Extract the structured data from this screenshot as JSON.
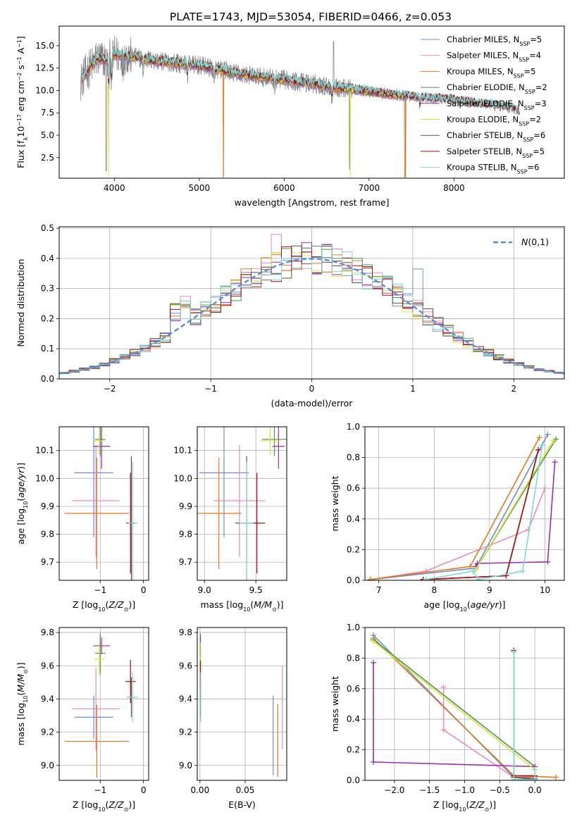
{
  "figure_title": "PLATE=1743, MJD=53054, FIBERID=0466, z=0.053",
  "colors": {
    "Chabrier MILES": "#6a8fd6",
    "Salpeter MILES": "#e98bc1",
    "Kroupa MILES": "#e07a1f",
    "Chabrier ELODIE": "#4a9a48",
    "Salpeter ELODIE": "#9b2bb0",
    "Kroupa ELODIE": "#dde33d",
    "Chabrier STELIB": "#6b4a40",
    "Salpeter STELIB": "#a01010",
    "Kroupa STELIB": "#7fd8d8"
  },
  "chart_data": [
    {
      "id": "spectrum",
      "type": "line",
      "title": "PLATE=1743, MJD=53054, FIBERID=0466, z=0.053",
      "xlabel": "wavelength [Angstrom, rest frame]",
      "ylabel": "Flux [f_λ 10^-17 erg cm^-2 s^-1 A^-1]",
      "xlim": [
        3350,
        9300
      ],
      "ylim": [
        0.2,
        17.2
      ],
      "xticks": [
        4000,
        5000,
        6000,
        7000,
        8000
      ],
      "yticks": [
        2.5,
        5.0,
        7.5,
        10.0,
        12.5,
        15.0
      ],
      "grid": false,
      "legend_position": "top-right",
      "legend": [
        {
          "model": "Chabrier MILES",
          "nssp": "5"
        },
        {
          "model": "Salpeter MILES",
          "nssp": "4"
        },
        {
          "model": "Kroupa MILES",
          "nssp": "5"
        },
        {
          "model": "Chabrier ELODIE",
          "nssp": "2"
        },
        {
          "model": "Salpeter ELODIE",
          "nssp": "3"
        },
        {
          "model": "Kroupa ELODIE",
          "nssp": "2"
        },
        {
          "model": "Chabrier STELIB",
          "nssp": "6"
        },
        {
          "model": "Salpeter STELIB",
          "nssp": "5"
        },
        {
          "model": "Kroupa STELIB",
          "nssp": "6"
        }
      ],
      "continuum": [
        [
          3600,
          11.0
        ],
        [
          3700,
          12.4
        ],
        [
          3800,
          13.6
        ],
        [
          3900,
          13.4
        ],
        [
          4000,
          14.0
        ],
        [
          4200,
          13.8
        ],
        [
          4500,
          13.3
        ],
        [
          5000,
          12.8
        ],
        [
          5500,
          11.8
        ],
        [
          6000,
          11.2
        ],
        [
          6500,
          10.5
        ],
        [
          7000,
          9.9
        ],
        [
          7500,
          9.3
        ],
        [
          8000,
          8.9
        ],
        [
          8400,
          8.4
        ],
        [
          8700,
          8.0
        ],
        [
          8780,
          7.7
        ]
      ]
    },
    {
      "id": "residuals",
      "type": "histogram",
      "xlabel": "(data-model)/error",
      "ylabel": "Normed distribution",
      "xlim": [
        -2.5,
        2.5
      ],
      "ylim": [
        0,
        0.505
      ],
      "xticks": [
        -2,
        -1,
        0,
        1,
        2
      ],
      "yticks": [
        0.0,
        0.1,
        0.2,
        0.3,
        0.4,
        0.5
      ],
      "grid": true,
      "bin_width": 0.1,
      "legend_position": "top-right",
      "reference_label": "N(0,1)"
    },
    {
      "id": "age-vs-Z",
      "type": "errorbar",
      "xlabel": "Z [log10(Z/Z⊙)]",
      "ylabel": "age [log10(age/yr)]",
      "xlim": [
        -1.95,
        0.12
      ],
      "ylim": [
        9.635,
        10.185
      ],
      "xticks": [
        -1,
        0
      ],
      "yticks": [
        9.7,
        9.8,
        9.9,
        10.0,
        10.1
      ],
      "grid": true,
      "points": [
        {
          "model": "Chabrier MILES",
          "x": -1.15,
          "xerr": 0.45,
          "y": 10.02,
          "yerr": 0.23
        },
        {
          "model": "Salpeter MILES",
          "x": -1.1,
          "xerr": 0.55,
          "y": 9.92,
          "yerr": 0.2
        },
        {
          "model": "Kroupa MILES",
          "x": -1.08,
          "xerr": 0.75,
          "y": 9.875,
          "yerr": 0.2
        },
        {
          "model": "Chabrier ELODIE",
          "x": -1.0,
          "xerr": 0.12,
          "y": 10.14,
          "yerr": 0.06
        },
        {
          "model": "Salpeter ELODIE",
          "x": -0.97,
          "xerr": 0.2,
          "y": 10.115,
          "yerr": 0.08
        },
        {
          "model": "Kroupa ELODIE",
          "x": -1.02,
          "xerr": 0.12,
          "y": 10.135,
          "yerr": 0.05
        },
        {
          "model": "Chabrier STELIB",
          "x": -0.28,
          "xerr": 0.1,
          "y": 9.84,
          "yerr": 0.24
        },
        {
          "model": "Salpeter STELIB",
          "x": -0.3,
          "xerr": 0.1,
          "y": 9.84,
          "yerr": 0.18
        },
        {
          "model": "Kroupa STELIB",
          "x": -0.25,
          "xerr": 0.12,
          "y": 9.84,
          "yerr": 0.22
        }
      ]
    },
    {
      "id": "age-vs-mass",
      "type": "errorbar",
      "xlabel": "mass [log10(M/M⊙)]",
      "ylabel": "",
      "xlim": [
        8.93,
        9.8
      ],
      "ylim": [
        9.635,
        10.185
      ],
      "xticks": [
        9.0,
        9.5
      ],
      "yticks": [
        9.7,
        9.8,
        9.9,
        10.0,
        10.1
      ],
      "grid": true,
      "points": [
        {
          "model": "Chabrier MILES",
          "x": 9.19,
          "xerr": 0.24,
          "y": 10.02,
          "yerr": 0.23
        },
        {
          "model": "Salpeter MILES",
          "x": 9.34,
          "xerr": 0.25,
          "y": 9.92,
          "yerr": 0.2
        },
        {
          "model": "Kroupa MILES",
          "x": 9.14,
          "xerr": 0.22,
          "y": 9.875,
          "yerr": 0.2
        },
        {
          "model": "Chabrier ELODIE",
          "x": 9.68,
          "xerr": 0.12,
          "y": 10.14,
          "yerr": 0.06
        },
        {
          "model": "Salpeter ELODIE",
          "x": 9.72,
          "xerr": 0.06,
          "y": 10.115,
          "yerr": 0.08
        },
        {
          "model": "Kroupa ELODIE",
          "x": 9.64,
          "xerr": 0.1,
          "y": 10.135,
          "yerr": 0.05
        },
        {
          "model": "Chabrier STELIB",
          "x": 9.41,
          "xerr": 0.11,
          "y": 9.84,
          "yerr": 0.24
        },
        {
          "model": "Salpeter STELIB",
          "x": 9.51,
          "xerr": 0.08,
          "y": 9.84,
          "yerr": 0.18
        },
        {
          "model": "Kroupa STELIB",
          "x": 9.41,
          "xerr": 0.07,
          "y": 9.84,
          "yerr": 0.22
        }
      ]
    },
    {
      "id": "weight-vs-age",
      "type": "line",
      "xlabel": "age [log10(age/yr)]",
      "ylabel": "mass weight",
      "xlim": [
        6.75,
        10.35
      ],
      "ylim": [
        0,
        1.0
      ],
      "xticks": [
        7,
        8,
        9,
        10
      ],
      "yticks": [
        0.0,
        0.2,
        0.4,
        0.6,
        0.8,
        1.0
      ],
      "grid": true,
      "series": [
        {
          "model": "Chabrier MILES",
          "points": [
            [
              6.85,
              0.005
            ],
            [
              8.75,
              0.08
            ],
            [
              10.05,
              0.95
            ]
          ]
        },
        {
          "model": "Salpeter MILES",
          "points": [
            [
              6.85,
              0.005
            ],
            [
              7.85,
              0.06
            ],
            [
              9.7,
              0.33
            ],
            [
              10.0,
              0.6
            ]
          ]
        },
        {
          "model": "Kroupa MILES",
          "points": [
            [
              6.85,
              0.005
            ],
            [
              8.65,
              0.09
            ],
            [
              9.9,
              0.93
            ]
          ]
        },
        {
          "model": "Chabrier ELODIE",
          "points": [
            [
              8.75,
              0.07
            ],
            [
              10.2,
              0.92
            ]
          ]
        },
        {
          "model": "Salpeter ELODIE",
          "points": [
            [
              8.75,
              0.09
            ],
            [
              8.78,
              0.11
            ],
            [
              10.05,
              0.12
            ],
            [
              10.18,
              0.77
            ]
          ]
        },
        {
          "model": "Kroupa ELODIE",
          "points": [
            [
              8.75,
              0.07
            ],
            [
              10.15,
              0.91
            ]
          ]
        },
        {
          "model": "Chabrier STELIB",
          "points": [
            [
              7.8,
              0.005
            ],
            [
              9.3,
              0.03
            ],
            [
              9.88,
              0.85
            ]
          ]
        },
        {
          "model": "Salpeter STELIB",
          "points": [
            [
              7.8,
              0.005
            ],
            [
              9.3,
              0.03
            ],
            [
              9.88,
              0.85
            ]
          ]
        },
        {
          "model": "Kroupa STELIB",
          "points": [
            [
              7.85,
              0.005
            ],
            [
              8.7,
              0.06
            ],
            [
              8.8,
              0.005
            ],
            [
              9.6,
              0.06
            ],
            [
              9.95,
              0.88
            ]
          ]
        }
      ]
    },
    {
      "id": "mass-vs-Z",
      "type": "errorbar",
      "xlabel": "Z [log10(Z/Z⊙)]",
      "ylabel": "mass [log10(M/M⊙)]",
      "xlim": [
        -1.95,
        0.12
      ],
      "ylim": [
        8.91,
        9.83
      ],
      "xticks": [
        -1,
        0
      ],
      "yticks": [
        9.0,
        9.2,
        9.4,
        9.6,
        9.8
      ],
      "grid": true,
      "points": [
        {
          "model": "Chabrier MILES",
          "x": -1.15,
          "xerr": 0.45,
          "y": 9.29,
          "yerr": 0.13
        },
        {
          "model": "Salpeter MILES",
          "x": -1.1,
          "xerr": 0.55,
          "y": 9.34,
          "yerr": 0.25
        },
        {
          "model": "Kroupa MILES",
          "x": -1.08,
          "xerr": 0.75,
          "y": 9.145,
          "yerr": 0.22
        },
        {
          "model": "Chabrier ELODIE",
          "x": -1.0,
          "xerr": 0.12,
          "y": 9.675,
          "yerr": 0.12
        },
        {
          "model": "Salpeter ELODIE",
          "x": -0.97,
          "xerr": 0.2,
          "y": 9.72,
          "yerr": 0.05
        },
        {
          "model": "Kroupa ELODIE",
          "x": -1.02,
          "xerr": 0.12,
          "y": 9.64,
          "yerr": 0.1
        },
        {
          "model": "Chabrier STELIB",
          "x": -0.28,
          "xerr": 0.1,
          "y": 9.41,
          "yerr": 0.12
        },
        {
          "model": "Salpeter STELIB",
          "x": -0.3,
          "xerr": 0.12,
          "y": 9.505,
          "yerr": 0.13
        },
        {
          "model": "Kroupa STELIB",
          "x": -0.25,
          "xerr": 0.12,
          "y": 9.41,
          "yerr": 0.15
        }
      ]
    },
    {
      "id": "mass-vs-EBV",
      "type": "errorbar",
      "xlabel": "E(B-V)",
      "ylabel": "",
      "xlim": [
        -0.003,
        0.096
      ],
      "ylim": [
        8.91,
        9.83
      ],
      "xticks": [
        0.0,
        0.05
      ],
      "yticks": [
        9.0,
        9.2,
        9.4,
        9.6,
        9.8
      ],
      "grid": true,
      "points": [
        {
          "model": "Chabrier MILES",
          "x": 0.081,
          "xerr": 0,
          "y": 9.18,
          "yerr": 0.24
        },
        {
          "model": "Salpeter MILES",
          "x": 0.091,
          "xerr": 0,
          "y": 9.35,
          "yerr": 0.25
        },
        {
          "model": "Kroupa MILES",
          "x": 0.086,
          "xerr": 0,
          "y": 9.15,
          "yerr": 0.22
        },
        {
          "model": "Chabrier ELODIE",
          "x": 0.0005,
          "xerr": 0,
          "y": 9.675,
          "yerr": 0.12
        },
        {
          "model": "Salpeter ELODIE",
          "x": 0.0005,
          "xerr": 0,
          "y": 9.72,
          "yerr": 0.06
        },
        {
          "model": "Kroupa ELODIE",
          "x": 0.0008,
          "xerr": 0,
          "y": 9.64,
          "yerr": 0.1
        },
        {
          "model": "Chabrier STELIB",
          "x": 0.0005,
          "xerr": 0,
          "y": 9.41,
          "yerr": 0.12
        },
        {
          "model": "Salpeter STELIB",
          "x": 0.0005,
          "xerr": 0,
          "y": 9.55,
          "yerr": 0.08
        },
        {
          "model": "Kroupa STELIB",
          "x": 0.0008,
          "xerr": 0,
          "y": 9.41,
          "yerr": 0.15
        }
      ]
    },
    {
      "id": "weight-vs-Z",
      "type": "line",
      "xlabel": "Z [log10(Z/Z⊙)]",
      "ylabel": "mass weight",
      "xlim": [
        -2.42,
        0.42
      ],
      "ylim": [
        0,
        1.0
      ],
      "xticks": [
        -2.0,
        -1.5,
        -1.0,
        -0.5,
        0.0
      ],
      "yticks": [
        0.0,
        0.2,
        0.4,
        0.6,
        0.8,
        1.0
      ],
      "grid": true,
      "series": [
        {
          "model": "Chabrier MILES",
          "points": [
            [
              -2.3,
              0.95
            ],
            [
              -0.3,
              0.02
            ],
            [
              0.0,
              0.005
            ]
          ]
        },
        {
          "model": "Salpeter MILES",
          "points": [
            [
              -1.3,
              0.61
            ],
            [
              -1.3,
              0.33
            ],
            [
              -0.3,
              0.02
            ],
            [
              0.0,
              0.02
            ]
          ]
        },
        {
          "model": "Kroupa MILES",
          "points": [
            [
              -2.3,
              0.93
            ],
            [
              -0.3,
              0.03
            ],
            [
              0.3,
              0.02
            ]
          ]
        },
        {
          "model": "Chabrier ELODIE",
          "points": [
            [
              -2.3,
              0.92
            ],
            [
              0.0,
              0.09
            ]
          ]
        },
        {
          "model": "Salpeter ELODIE",
          "points": [
            [
              -2.3,
              0.77
            ],
            [
              -2.3,
              0.12
            ],
            [
              0.0,
              0.09
            ]
          ]
        },
        {
          "model": "Kroupa ELODIE",
          "points": [
            [
              -2.3,
              0.91
            ],
            [
              0.0,
              0.07
            ]
          ]
        },
        {
          "model": "Chabrier STELIB",
          "points": [
            [
              -0.3,
              0.85
            ],
            [
              -0.3,
              0.02
            ],
            [
              0.0,
              0.01
            ]
          ]
        },
        {
          "model": "Salpeter STELIB",
          "points": [
            [
              -0.3,
              0.85
            ],
            [
              -0.3,
              0.03
            ],
            [
              0.0,
              0.03
            ]
          ]
        },
        {
          "model": "Kroupa STELIB",
          "points": [
            [
              -0.3,
              0.84
            ],
            [
              -0.3,
              0.005
            ],
            [
              0.0,
              0.005
            ],
            [
              0.0,
              0.07
            ]
          ]
        }
      ]
    }
  ]
}
